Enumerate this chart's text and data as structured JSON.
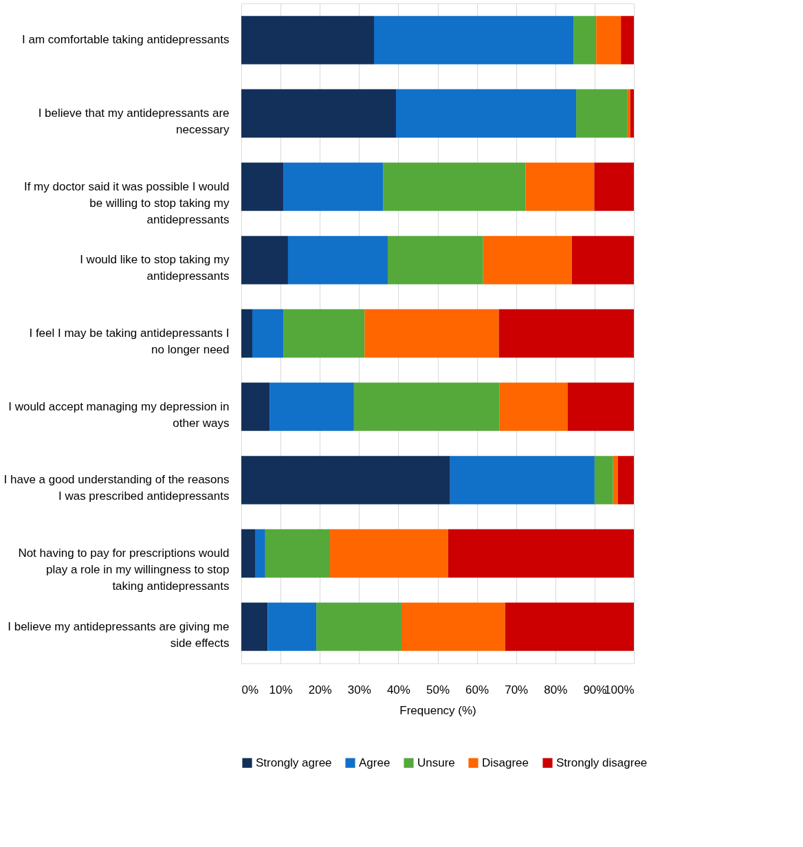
{
  "chart_data": {
    "type": "bar",
    "orientation": "horizontal",
    "stacked": true,
    "xlabel": "Frequency (%)",
    "categories": [
      "I am comfortable taking antidepressants",
      "I believe that my antidepressants are necessary",
      "If my doctor said it was possible I would be willing to stop taking my antidepressants",
      "I would like to stop taking my antidepressants",
      "I feel I may be taking antidepressants I no longer need",
      "I would accept managing my depression in other ways",
      "I have a good understanding of the reasons I was prescribed antidepressants",
      "Not having to pay for prescriptions would play a role in my willingness to stop taking antidepressants",
      "I believe my antidepressants are giving me side effects"
    ],
    "series": [
      {
        "name": "Strongly agree",
        "color": "#13305a",
        "values": [
          33.8,
          39.4,
          10.7,
          11.9,
          2.8,
          7.2,
          53.2,
          3.5,
          6.7
        ]
      },
      {
        "name": "Agree",
        "color": "#1170c8",
        "values": [
          50.8,
          45.9,
          25.4,
          25.4,
          7.9,
          21.5,
          36.8,
          2.6,
          12.4
        ]
      },
      {
        "name": "Unsure",
        "color": "#55a93a",
        "values": [
          5.8,
          13.1,
          36.3,
          24.3,
          20.7,
          37.1,
          4.7,
          16.5,
          21.7
        ]
      },
      {
        "name": "Disagree",
        "color": "#ff6600",
        "values": [
          6.3,
          0.7,
          17.5,
          22.6,
          34.2,
          17.3,
          1.2,
          30.1,
          26.4
        ]
      },
      {
        "name": "Strongly disagree",
        "color": "#cc0000",
        "values": [
          3.3,
          0.9,
          10.1,
          15.8,
          34.4,
          16.9,
          4.1,
          47.3,
          32.8
        ]
      }
    ],
    "xlim": [
      0,
      100
    ],
    "xticks": [
      {
        "value": 0,
        "label": "0%"
      },
      {
        "value": 10,
        "label": "10%"
      },
      {
        "value": 20,
        "label": "20%"
      },
      {
        "value": 30,
        "label": "30%"
      },
      {
        "value": 40,
        "label": "40%"
      },
      {
        "value": 50,
        "label": "50%"
      },
      {
        "value": 60,
        "label": "60%"
      },
      {
        "value": 70,
        "label": "70%"
      },
      {
        "value": 80,
        "label": "80%"
      },
      {
        "value": 90,
        "label": "90%"
      },
      {
        "value": 100,
        "label": "100%"
      }
    ],
    "grid": "x",
    "legend": "bottom"
  }
}
